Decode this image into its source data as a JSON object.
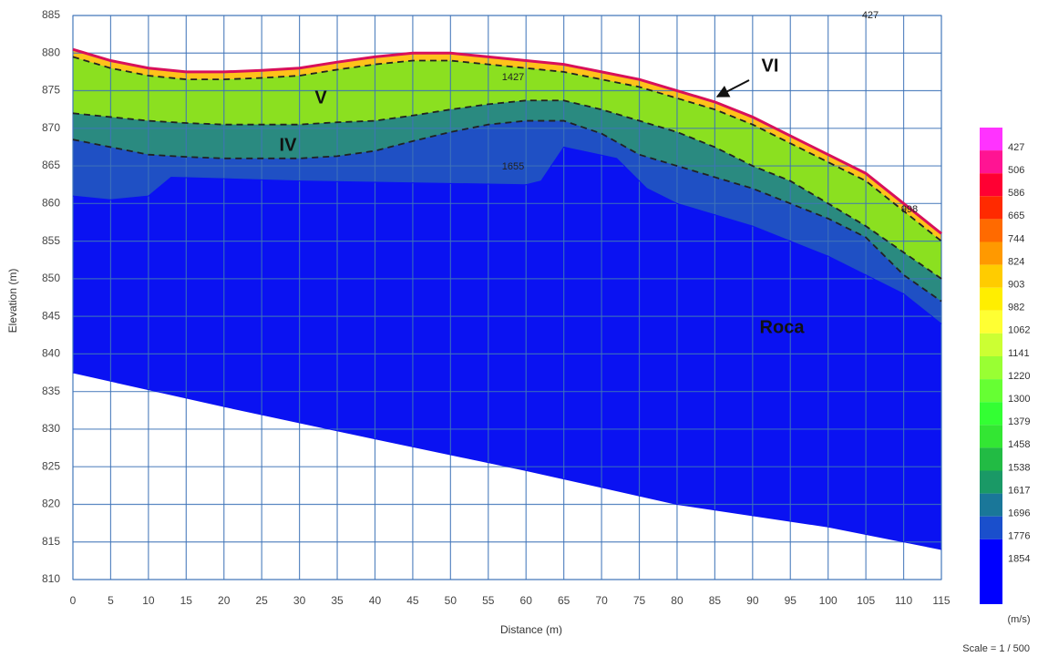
{
  "chart_data": {
    "type": "section",
    "x_label": "Distance (m)",
    "y_label": "Elevation (m)",
    "scale_note": "Scale = 1 / 500",
    "xlim": [
      0,
      115
    ],
    "ylim": [
      810,
      885
    ],
    "xticks": [
      0,
      5,
      10,
      15,
      20,
      25,
      30,
      35,
      40,
      45,
      50,
      55,
      60,
      65,
      70,
      75,
      80,
      85,
      90,
      95,
      100,
      105,
      110,
      115
    ],
    "yticks": [
      810,
      815,
      820,
      825,
      830,
      835,
      840,
      845,
      850,
      855,
      860,
      865,
      870,
      875,
      880,
      885
    ],
    "grid": true,
    "grid_color": "#3f74b8",
    "layers": [
      {
        "color": "#ffc21a",
        "stroke": "#d8105a",
        "line": "solid",
        "x": [
          0,
          5,
          10,
          15,
          20,
          25,
          30,
          35,
          40,
          45,
          50,
          55,
          60,
          65,
          70,
          75,
          80,
          85,
          90,
          95,
          100,
          105,
          110,
          115
        ],
        "values": [
          880.5,
          879,
          878,
          877.5,
          877.5,
          877.7,
          878,
          878.8,
          879.5,
          880,
          880,
          879.5,
          879,
          878.5,
          877.5,
          876.5,
          875,
          873.5,
          871.5,
          869,
          866.5,
          864,
          860,
          856
        ]
      },
      {
        "color": "#8be020",
        "stroke": "#222222",
        "line": "dashed",
        "x": [
          0,
          5,
          10,
          15,
          20,
          25,
          30,
          35,
          40,
          45,
          50,
          55,
          60,
          65,
          70,
          75,
          80,
          85,
          90,
          95,
          100,
          105,
          110,
          115
        ],
        "values": [
          879.5,
          878,
          877,
          876.5,
          876.5,
          876.7,
          877,
          877.8,
          878.5,
          879,
          879,
          878.5,
          878,
          877.5,
          876.5,
          875.5,
          874,
          872.5,
          870.5,
          868,
          865.5,
          863,
          859,
          855
        ]
      },
      {
        "color": "#2a8a80",
        "stroke": "#222222",
        "line": "dashed",
        "x": [
          0,
          5,
          10,
          15,
          20,
          25,
          30,
          35,
          40,
          45,
          50,
          55,
          60,
          65,
          70,
          75,
          80,
          85,
          90,
          95,
          100,
          105,
          110,
          115
        ],
        "values": [
          872,
          871.5,
          871,
          870.7,
          870.5,
          870.5,
          870.5,
          870.8,
          871,
          871.7,
          872.5,
          873.2,
          873.7,
          873.7,
          872.5,
          871,
          869.5,
          867.5,
          865,
          863,
          860,
          857,
          853.5,
          850
        ]
      },
      {
        "color": "#1f50c4",
        "stroke": "#222222",
        "line": "dashed",
        "x": [
          0,
          5,
          10,
          15,
          20,
          25,
          30,
          35,
          40,
          45,
          50,
          55,
          60,
          65,
          70,
          75,
          80,
          85,
          90,
          95,
          100,
          105,
          110,
          115
        ],
        "values": [
          868.5,
          867.5,
          866.5,
          866.2,
          866,
          866,
          866,
          866.3,
          867,
          868.3,
          869.5,
          870.5,
          871,
          871,
          869.3,
          866.5,
          865,
          863.5,
          862,
          860,
          858,
          855.5,
          850.5,
          847
        ]
      },
      {
        "color": "#0a12f2",
        "stroke": "#0a12f2",
        "line": "solid",
        "x": [
          0,
          5,
          10,
          13,
          30,
          60,
          62,
          65,
          72,
          76,
          80,
          90,
          100,
          110,
          115
        ],
        "values": [
          861,
          860.5,
          861,
          863.5,
          863,
          862.5,
          863,
          867.5,
          866,
          862,
          860,
          857,
          853,
          848,
          844
        ]
      },
      {
        "color": "#0a12f2",
        "stroke": "#0a12f2",
        "line": "solid",
        "x": [
          0,
          20,
          40,
          60,
          80,
          100,
          115
        ],
        "values": [
          837.5,
          833,
          828.7,
          824.5,
          820,
          817,
          814
        ]
      }
    ],
    "annotations": [
      "VI",
      "V",
      "IV",
      "Roca",
      "427",
      "1427",
      "1655",
      "998"
    ],
    "colorbar": {
      "unit": "(m/s)",
      "values": [
        427,
        506,
        586,
        665,
        744,
        824,
        903,
        982,
        1062,
        1141,
        1220,
        1300,
        1379,
        1458,
        1538,
        1617,
        1696,
        1776,
        1854
      ],
      "colors": [
        "#ff33ff",
        "#ff1493",
        "#ff0033",
        "#ff2a00",
        "#ff6a00",
        "#ff9900",
        "#ffcc00",
        "#ffee00",
        "#ffff33",
        "#ccff33",
        "#99ff33",
        "#66ff33",
        "#33ff33",
        "#33e633",
        "#22bb44",
        "#1a9966",
        "#1a7799",
        "#1a4fcc",
        "#0000ff"
      ]
    }
  }
}
